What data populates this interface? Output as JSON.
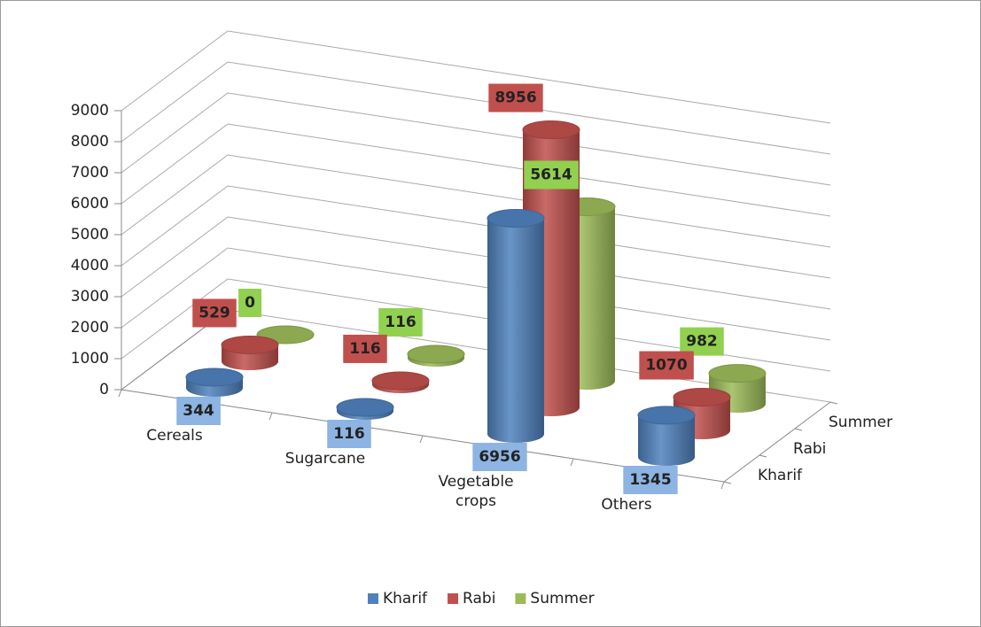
{
  "chart_data": {
    "type": "bar3d",
    "categories": [
      "Cereals",
      "Sugarcane",
      "Vegetable crops",
      "Others"
    ],
    "series": [
      {
        "name": "Kharif",
        "color": "#4f81bd",
        "label_color": "#8db4e2",
        "values": [
          344,
          116,
          6956,
          1345
        ]
      },
      {
        "name": "Rabi",
        "color": "#c0504d",
        "label_color": "#c0504d",
        "values": [
          529,
          116,
          8956,
          1070
        ]
      },
      {
        "name": "Summer",
        "color": "#9bbb59",
        "label_color": "#92d050",
        "values": [
          0,
          116,
          5614,
          982
        ]
      }
    ],
    "ylim": [
      0,
      9000
    ],
    "yticks": [
      0,
      1000,
      2000,
      3000,
      4000,
      5000,
      6000,
      7000,
      8000,
      9000
    ],
    "grid": true,
    "legend": "bottom"
  }
}
